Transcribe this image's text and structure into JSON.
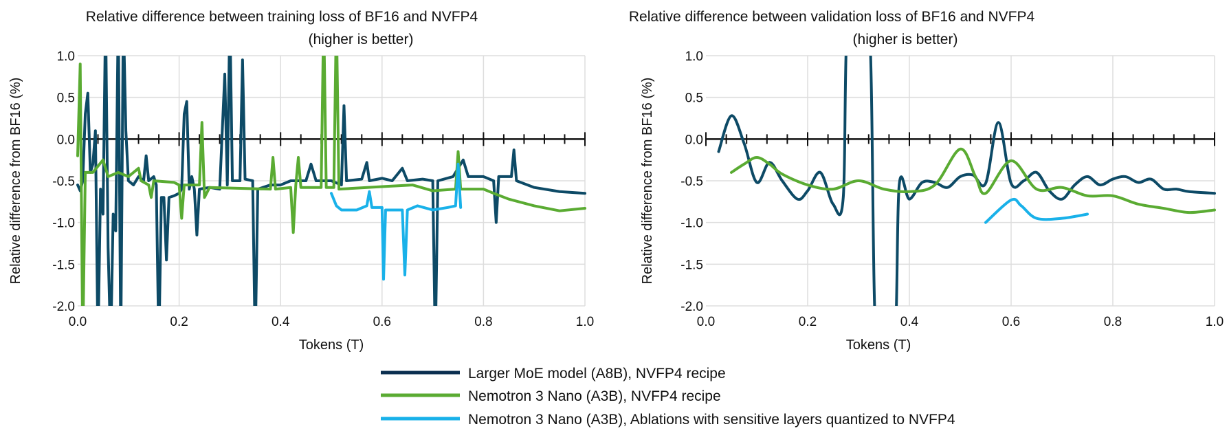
{
  "colors": {
    "larger_moe": "#0d4a66",
    "larger_moe_legend": "#0b2f50",
    "nano": "#5aab32",
    "ablation": "#19b1e9",
    "grid": "#dddddd",
    "axis": "#111111"
  },
  "legend": {
    "placement": "bottom-center",
    "items": [
      {
        "key": "larger_moe",
        "label": "Larger MoE model (A8B), NVFP4 recipe"
      },
      {
        "key": "nano",
        "label": "Nemotron 3 Nano (A3B), NVFP4 recipe"
      },
      {
        "key": "ablation",
        "label": "Nemotron 3 Nano (A3B), Ablations with sensitive layers quantized to NVFP4"
      }
    ]
  },
  "chart_data": [
    {
      "type": "line",
      "title": "Relative difference between training loss of BF16 and NVFP4",
      "subtitle": "(higher is better)",
      "xlabel": "Tokens (T)",
      "ylabel": "Relative difference from BF16 (%)",
      "xlim": [
        0,
        1
      ],
      "ylim": [
        -2,
        1
      ],
      "xticks": [
        "0.0",
        "0.2",
        "0.4",
        "0.6",
        "0.8",
        "1.0"
      ],
      "yticks": [
        "1.0",
        "0.5",
        "0.0",
        "-0.5",
        "-1.0",
        "-1.5",
        "-2.0"
      ],
      "grid": true,
      "smooth": false,
      "series": [
        {
          "key": "larger_moe",
          "name": "Larger MoE model (A8B), NVFP4 recipe",
          "points": [
            [
              0,
              -0.55
            ],
            [
              0.005,
              -0.62
            ],
            [
              0.01,
              -0.5
            ],
            [
              0.015,
              0.3
            ],
            [
              0.02,
              0.55
            ],
            [
              0.025,
              -0.4
            ],
            [
              0.03,
              -0.3
            ],
            [
              0.035,
              0.1
            ],
            [
              0.04,
              -2.5
            ],
            [
              0.045,
              -0.6
            ],
            [
              0.05,
              -0.9
            ],
            [
              0.055,
              1.5
            ],
            [
              0.06,
              -1.3
            ],
            [
              0.065,
              -2.5
            ],
            [
              0.07,
              -0.9
            ],
            [
              0.075,
              -1.1
            ],
            [
              0.08,
              1.5
            ],
            [
              0.085,
              -2.5
            ],
            [
              0.09,
              1.5
            ],
            [
              0.095,
              0.1
            ],
            [
              0.1,
              -0.5
            ],
            [
              0.11,
              -0.55
            ],
            [
              0.12,
              -0.45
            ],
            [
              0.13,
              -0.5
            ],
            [
              0.135,
              -0.2
            ],
            [
              0.14,
              -0.5
            ],
            [
              0.15,
              -0.45
            ],
            [
              0.155,
              -0.55
            ],
            [
              0.16,
              -2.5
            ],
            [
              0.165,
              -0.7
            ],
            [
              0.17,
              -0.7
            ],
            [
              0.175,
              -1.45
            ],
            [
              0.18,
              -0.7
            ],
            [
              0.19,
              -0.68
            ],
            [
              0.2,
              -0.65
            ],
            [
              0.205,
              -0.6
            ],
            [
              0.21,
              0.3
            ],
            [
              0.215,
              0.45
            ],
            [
              0.22,
              -0.6
            ],
            [
              0.225,
              -0.45
            ],
            [
              0.23,
              -0.6
            ],
            [
              0.235,
              -1.15
            ],
            [
              0.24,
              -0.6
            ],
            [
              0.26,
              -0.58
            ],
            [
              0.28,
              -0.6
            ],
            [
              0.29,
              0.78
            ],
            [
              0.295,
              -0.55
            ],
            [
              0.3,
              1.5
            ],
            [
              0.305,
              -0.5
            ],
            [
              0.32,
              -0.5
            ],
            [
              0.325,
              0.95
            ],
            [
              0.33,
              -0.48
            ],
            [
              0.345,
              -0.5
            ],
            [
              0.35,
              -2.5
            ],
            [
              0.355,
              -0.6
            ],
            [
              0.38,
              -0.55
            ],
            [
              0.4,
              -0.55
            ],
            [
              0.42,
              -0.5
            ],
            [
              0.45,
              -0.5
            ],
            [
              0.46,
              -0.3
            ],
            [
              0.47,
              -0.5
            ],
            [
              0.5,
              -0.5
            ],
            [
              0.52,
              -0.55
            ],
            [
              0.525,
              0.4
            ],
            [
              0.53,
              -0.5
            ],
            [
              0.56,
              -0.48
            ],
            [
              0.57,
              -0.28
            ],
            [
              0.575,
              -0.5
            ],
            [
              0.6,
              -0.47
            ],
            [
              0.62,
              -0.5
            ],
            [
              0.64,
              -0.35
            ],
            [
              0.65,
              -0.5
            ],
            [
              0.68,
              -0.48
            ],
            [
              0.7,
              -0.5
            ],
            [
              0.705,
              -2.5
            ],
            [
              0.71,
              -0.5
            ],
            [
              0.74,
              -0.45
            ],
            [
              0.76,
              -0.25
            ],
            [
              0.77,
              -0.45
            ],
            [
              0.8,
              -0.45
            ],
            [
              0.82,
              -0.5
            ],
            [
              0.825,
              -1.0
            ],
            [
              0.83,
              -0.45
            ],
            [
              0.855,
              -0.45
            ],
            [
              0.86,
              -0.13
            ],
            [
              0.865,
              -0.5
            ],
            [
              0.9,
              -0.58
            ],
            [
              0.95,
              -0.63
            ],
            [
              1.0,
              -0.65
            ]
          ]
        },
        {
          "key": "nano",
          "name": "Nemotron 3 Nano (A3B), NVFP4 recipe",
          "points": [
            [
              0,
              -0.2
            ],
            [
              0.005,
              0.9
            ],
            [
              0.01,
              -2.5
            ],
            [
              0.015,
              -0.4
            ],
            [
              0.03,
              -0.4
            ],
            [
              0.05,
              -0.25
            ],
            [
              0.06,
              -0.45
            ],
            [
              0.08,
              -0.4
            ],
            [
              0.1,
              -0.45
            ],
            [
              0.12,
              -0.35
            ],
            [
              0.125,
              -0.5
            ],
            [
              0.14,
              -0.55
            ],
            [
              0.145,
              -0.7
            ],
            [
              0.15,
              -0.5
            ],
            [
              0.19,
              -0.52
            ],
            [
              0.2,
              -0.55
            ],
            [
              0.205,
              -0.95
            ],
            [
              0.21,
              -0.55
            ],
            [
              0.24,
              -0.55
            ],
            [
              0.245,
              0.2
            ],
            [
              0.25,
              -0.7
            ],
            [
              0.26,
              -0.58
            ],
            [
              0.38,
              -0.6
            ],
            [
              0.385,
              -0.22
            ],
            [
              0.39,
              -0.6
            ],
            [
              0.42,
              -0.58
            ],
            [
              0.425,
              -1.12
            ],
            [
              0.43,
              -0.55
            ],
            [
              0.435,
              -0.22
            ],
            [
              0.44,
              -0.58
            ],
            [
              0.48,
              -0.58
            ],
            [
              0.485,
              1.5
            ],
            [
              0.49,
              -0.58
            ],
            [
              0.505,
              -0.58
            ],
            [
              0.51,
              1.5
            ],
            [
              0.515,
              -0.6
            ],
            [
              0.6,
              -0.57
            ],
            [
              0.66,
              -0.55
            ],
            [
              0.7,
              -0.62
            ],
            [
              0.745,
              -0.6
            ],
            [
              0.75,
              -0.15
            ],
            [
              0.755,
              -0.6
            ],
            [
              0.8,
              -0.6
            ],
            [
              0.82,
              -0.65
            ],
            [
              0.85,
              -0.72
            ],
            [
              0.9,
              -0.8
            ],
            [
              0.95,
              -0.86
            ],
            [
              1.0,
              -0.83
            ]
          ]
        },
        {
          "key": "ablation",
          "name": "Nemotron 3 Nano (A3B), Ablations with sensitive layers quantized to NVFP4",
          "points": [
            [
              0.5,
              -0.65
            ],
            [
              0.51,
              -0.8
            ],
            [
              0.52,
              -0.85
            ],
            [
              0.55,
              -0.85
            ],
            [
              0.57,
              -0.8
            ],
            [
              0.575,
              -0.63
            ],
            [
              0.58,
              -0.82
            ],
            [
              0.6,
              -0.82
            ],
            [
              0.603,
              -1.68
            ],
            [
              0.607,
              -0.85
            ],
            [
              0.64,
              -0.85
            ],
            [
              0.645,
              -1.63
            ],
            [
              0.65,
              -0.85
            ],
            [
              0.67,
              -0.8
            ],
            [
              0.7,
              -0.85
            ],
            [
              0.73,
              -0.82
            ],
            [
              0.745,
              -0.8
            ],
            [
              0.75,
              -0.3
            ],
            [
              0.755,
              -0.82
            ]
          ]
        }
      ]
    },
    {
      "type": "line",
      "title": "Relative difference between validation loss of BF16 and NVFP4",
      "subtitle": "(higher is better)",
      "xlabel": "Tokens (T)",
      "ylabel": "Relative difference from BF16 (%)",
      "xlim": [
        0,
        1
      ],
      "ylim": [
        -2,
        1
      ],
      "xticks": [
        "0.0",
        "0.2",
        "0.4",
        "0.6",
        "0.8",
        "1.0"
      ],
      "yticks": [
        "1.0",
        "0.5",
        "0.0",
        "-0.5",
        "-1.0",
        "-1.5",
        "-2.0"
      ],
      "grid": true,
      "smooth": true,
      "series": [
        {
          "key": "larger_moe",
          "name": "Larger MoE model (A8B), NVFP4 recipe",
          "points": [
            [
              0.025,
              -0.15
            ],
            [
              0.05,
              0.28
            ],
            [
              0.075,
              -0.05
            ],
            [
              0.1,
              -0.52
            ],
            [
              0.125,
              -0.28
            ],
            [
              0.15,
              -0.5
            ],
            [
              0.18,
              -0.72
            ],
            [
              0.2,
              -0.62
            ],
            [
              0.225,
              -0.4
            ],
            [
              0.25,
              -0.78
            ],
            [
              0.27,
              -0.7
            ],
            [
              0.28,
              1.5
            ],
            [
              0.32,
              1.5
            ],
            [
              0.335,
              -2.5
            ],
            [
              0.37,
              -2.5
            ],
            [
              0.38,
              -0.55
            ],
            [
              0.4,
              -0.72
            ],
            [
              0.425,
              -0.52
            ],
            [
              0.45,
              -0.52
            ],
            [
              0.475,
              -0.58
            ],
            [
              0.5,
              -0.45
            ],
            [
              0.525,
              -0.43
            ],
            [
              0.55,
              -0.53
            ],
            [
              0.575,
              0.2
            ],
            [
              0.6,
              -0.53
            ],
            [
              0.625,
              -0.5
            ],
            [
              0.65,
              -0.4
            ],
            [
              0.675,
              -0.62
            ],
            [
              0.7,
              -0.72
            ],
            [
              0.725,
              -0.55
            ],
            [
              0.75,
              -0.45
            ],
            [
              0.775,
              -0.55
            ],
            [
              0.8,
              -0.48
            ],
            [
              0.825,
              -0.45
            ],
            [
              0.85,
              -0.52
            ],
            [
              0.875,
              -0.48
            ],
            [
              0.9,
              -0.6
            ],
            [
              0.925,
              -0.6
            ],
            [
              0.95,
              -0.63
            ],
            [
              1.0,
              -0.65
            ]
          ]
        },
        {
          "key": "nano",
          "name": "Nemotron 3 Nano (A3B), NVFP4 recipe",
          "points": [
            [
              0.05,
              -0.4
            ],
            [
              0.075,
              -0.3
            ],
            [
              0.1,
              -0.22
            ],
            [
              0.125,
              -0.3
            ],
            [
              0.15,
              -0.42
            ],
            [
              0.2,
              -0.55
            ],
            [
              0.25,
              -0.6
            ],
            [
              0.3,
              -0.5
            ],
            [
              0.35,
              -0.6
            ],
            [
              0.4,
              -0.63
            ],
            [
              0.45,
              -0.55
            ],
            [
              0.5,
              -0.12
            ],
            [
              0.53,
              -0.45
            ],
            [
              0.55,
              -0.65
            ],
            [
              0.6,
              -0.26
            ],
            [
              0.65,
              -0.6
            ],
            [
              0.7,
              -0.58
            ],
            [
              0.75,
              -0.68
            ],
            [
              0.8,
              -0.68
            ],
            [
              0.85,
              -0.78
            ],
            [
              0.9,
              -0.83
            ],
            [
              0.95,
              -0.88
            ],
            [
              1.0,
              -0.85
            ]
          ]
        },
        {
          "key": "ablation",
          "name": "Nemotron 3 Nano (A3B), Ablations with sensitive layers quantized to NVFP4",
          "points": [
            [
              0.55,
              -1.0
            ],
            [
              0.6,
              -0.73
            ],
            [
              0.62,
              -0.8
            ],
            [
              0.65,
              -0.95
            ],
            [
              0.7,
              -0.95
            ],
            [
              0.75,
              -0.9
            ]
          ]
        }
      ]
    }
  ]
}
